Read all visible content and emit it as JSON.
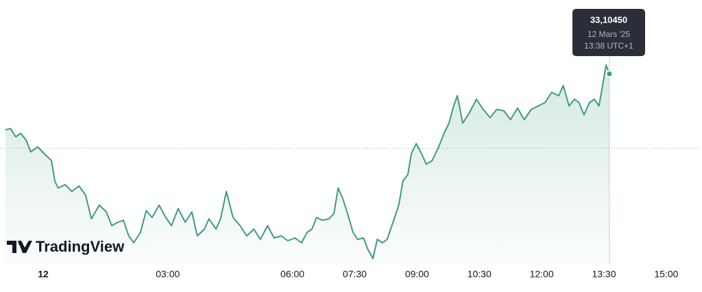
{
  "chart_data": {
    "type": "area",
    "watermark": "TradingView",
    "x": [
      -0.91,
      -0.79,
      -0.66,
      -0.54,
      -0.41,
      -0.3,
      -0.13,
      0.03,
      0.2,
      0.28,
      0.36,
      0.53,
      0.69,
      0.86,
      1.02,
      1.16,
      1.35,
      1.52,
      1.65,
      1.8,
      1.93,
      2.06,
      2.18,
      2.34,
      2.48,
      2.62,
      2.79,
      2.95,
      3.09,
      3.25,
      3.42,
      3.58,
      3.71,
      3.88,
      3.99,
      4.16,
      4.27,
      4.41,
      4.57,
      4.74,
      4.9,
      5.07,
      5.23,
      5.4,
      5.56,
      5.73,
      5.89,
      6.06,
      6.22,
      6.35,
      6.47,
      6.58,
      6.72,
      6.88,
      7.0,
      7.1,
      7.21,
      7.34,
      7.46,
      7.57,
      7.71,
      7.82,
      7.94,
      8.04,
      8.17,
      8.28,
      8.45,
      8.56,
      8.66,
      8.78,
      8.86,
      8.98,
      9.11,
      9.22,
      9.36,
      9.52,
      9.65,
      9.77,
      9.88,
      9.97,
      10.1,
      10.26,
      10.43,
      10.59,
      10.76,
      10.92,
      11.09,
      11.25,
      11.42,
      11.58,
      11.75,
      11.91,
      12.08,
      12.24,
      12.41,
      12.52,
      12.66,
      12.79,
      12.9,
      13.02,
      13.15,
      13.27,
      13.38,
      13.48,
      13.55,
      13.63
    ],
    "series": [
      {
        "color": "#3f9a80",
        "values": [
          33.0225,
          33.0245,
          33.0125,
          33.0175,
          33.0075,
          32.9905,
          32.9975,
          32.9875,
          32.9775,
          32.9475,
          32.9375,
          32.9425,
          32.9325,
          32.9405,
          32.9275,
          32.8925,
          32.9125,
          32.9025,
          32.8825,
          32.8875,
          32.8905,
          32.8675,
          32.8575,
          32.8725,
          32.9045,
          32.8945,
          32.9125,
          32.8945,
          32.8825,
          32.9075,
          32.8875,
          32.9025,
          32.8675,
          32.8775,
          32.8925,
          32.8775,
          32.8925,
          32.9325,
          32.8945,
          32.8825,
          32.8675,
          32.8775,
          32.8625,
          32.8825,
          32.8645,
          32.8675,
          32.8605,
          32.8645,
          32.8575,
          32.8725,
          32.8775,
          32.8945,
          32.8905,
          32.8925,
          32.9005,
          32.9375,
          32.9225,
          32.8975,
          32.8725,
          32.8625,
          32.8645,
          32.8475,
          32.8345,
          32.8625,
          32.8575,
          32.8625,
          32.8925,
          32.9125,
          32.9475,
          32.9575,
          32.9875,
          33.0025,
          32.9875,
          32.9725,
          32.9775,
          32.9975,
          33.0175,
          33.0325,
          33.0575,
          33.0725,
          33.0325,
          33.0475,
          33.0675,
          33.0525,
          33.0405,
          33.0525,
          33.0505,
          33.0375,
          33.0545,
          33.0375,
          33.0525,
          33.0575,
          33.0625,
          33.0775,
          33.0725,
          33.0875,
          33.0575,
          33.0675,
          33.0625,
          33.0445,
          33.0625,
          33.0675,
          33.0575,
          33.0925,
          33.1175,
          33.1045
        ]
      }
    ],
    "reference_line": 32.9955,
    "xlim": [
      -1.04,
      15.86
    ],
    "ylim": [
      32.8275,
      33.2125
    ],
    "xticks": [
      {
        "value": 0,
        "label": "12"
      },
      {
        "value": 3,
        "label": "03:00"
      },
      {
        "value": 6,
        "label": "06:00"
      },
      {
        "value": 7.5,
        "label": "07:30"
      },
      {
        "value": 9,
        "label": "09:00"
      },
      {
        "value": 10.5,
        "label": "10:30"
      },
      {
        "value": 12,
        "label": "12:00"
      },
      {
        "value": 13.5,
        "label": "13:30"
      },
      {
        "value": 15,
        "label": "15:00"
      }
    ],
    "tooltip": {
      "value": "33,10450",
      "date": "12 Mars '25",
      "time": "13:38 UTC+1"
    }
  }
}
